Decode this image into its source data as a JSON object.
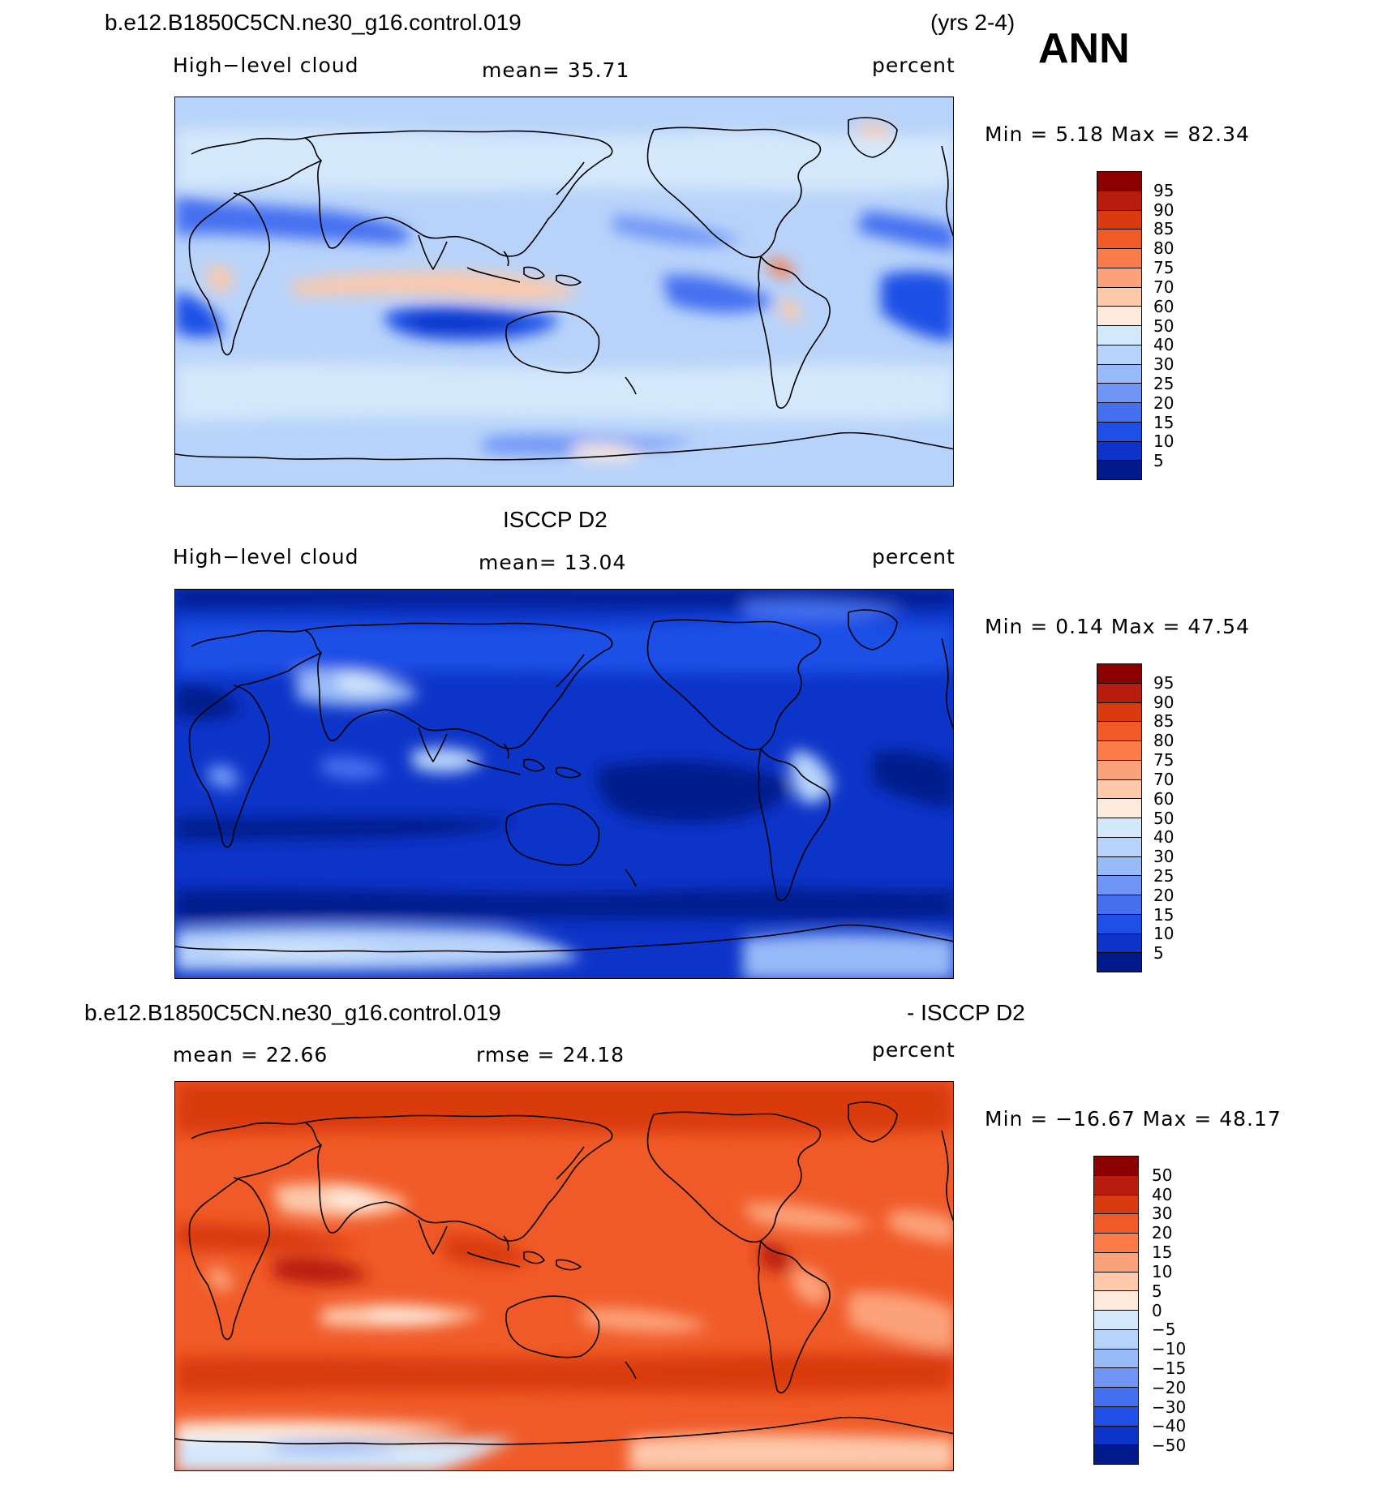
{
  "header": {
    "case_name": "b.e12.B1850C5CN.ne30_g16.control.019",
    "years": "(yrs 2-4)",
    "season": "ANN"
  },
  "panel1": {
    "variable": "High−level cloud",
    "mean": "mean=   35.71",
    "units": "percent",
    "minmax": "Min =     5.18 Max =   82.34"
  },
  "panel2": {
    "title": "ISCCP D2",
    "variable": "High−level cloud",
    "mean": "mean=   13.04",
    "units": "percent",
    "minmax": "Min =     0.14 Max =   47.54"
  },
  "panel3": {
    "title_left": "b.e12.B1850C5CN.ne30_g16.control.019",
    "title_right": "- ISCCP D2",
    "mean": "mean =   22.66",
    "rmse": "rmse =   24.18",
    "units": "percent",
    "minmax": "Min = −16.67 Max =   48.17"
  },
  "colorbar_abs": {
    "labels": [
      "95",
      "90",
      "85",
      "80",
      "75",
      "70",
      "60",
      "50",
      "40",
      "30",
      "25",
      "20",
      "15",
      "10",
      "5"
    ],
    "colors": [
      "#8b0000",
      "#b71c0c",
      "#d93a10",
      "#f05a28",
      "#fb7c48",
      "#fca27a",
      "#fdc9aa",
      "#feeada",
      "#d4e8fb",
      "#b8d3fa",
      "#99baf8",
      "#6f95f6",
      "#4470f0",
      "#1f4fe6",
      "#0d34c8",
      "#001a8c"
    ]
  },
  "colorbar_diff": {
    "labels": [
      "50",
      "40",
      "30",
      "20",
      "15",
      "10",
      "5",
      "0",
      "−5",
      "−10",
      "−15",
      "−20",
      "−30",
      "−40",
      "−50"
    ],
    "colors": [
      "#8b0000",
      "#b71c0c",
      "#d93a10",
      "#f05a28",
      "#fb7c48",
      "#fca27a",
      "#fdc9aa",
      "#feeada",
      "#d4e8fb",
      "#b8d3fa",
      "#99baf8",
      "#6f95f6",
      "#4470f0",
      "#1f4fe6",
      "#0d34c8",
      "#001a8c"
    ]
  },
  "map_fields": {
    "panel1": {
      "background_level": "30-40",
      "high_regions": [
        "Maritime Continent",
        "central Africa",
        "South America",
        "Central America"
      ],
      "low_regions": [
        "subtropical Pacific",
        "subtropical Atlantic",
        "Sahara",
        "Australia"
      ]
    },
    "panel2": {
      "background_level": "5-15",
      "high_regions": [
        "Antarctica",
        "Tibet",
        "Amazon",
        "Maritime Continent"
      ],
      "low_regions": [
        "subtropical oceans",
        "Southern Ocean"
      ]
    },
    "panel3": {
      "background_level": "20-30",
      "high_regions": [
        "western Pacific",
        "Central America",
        "tropical Indian Ocean"
      ],
      "low_regions": [
        "Antarctica",
        "Tibet",
        "Australia"
      ]
    }
  }
}
